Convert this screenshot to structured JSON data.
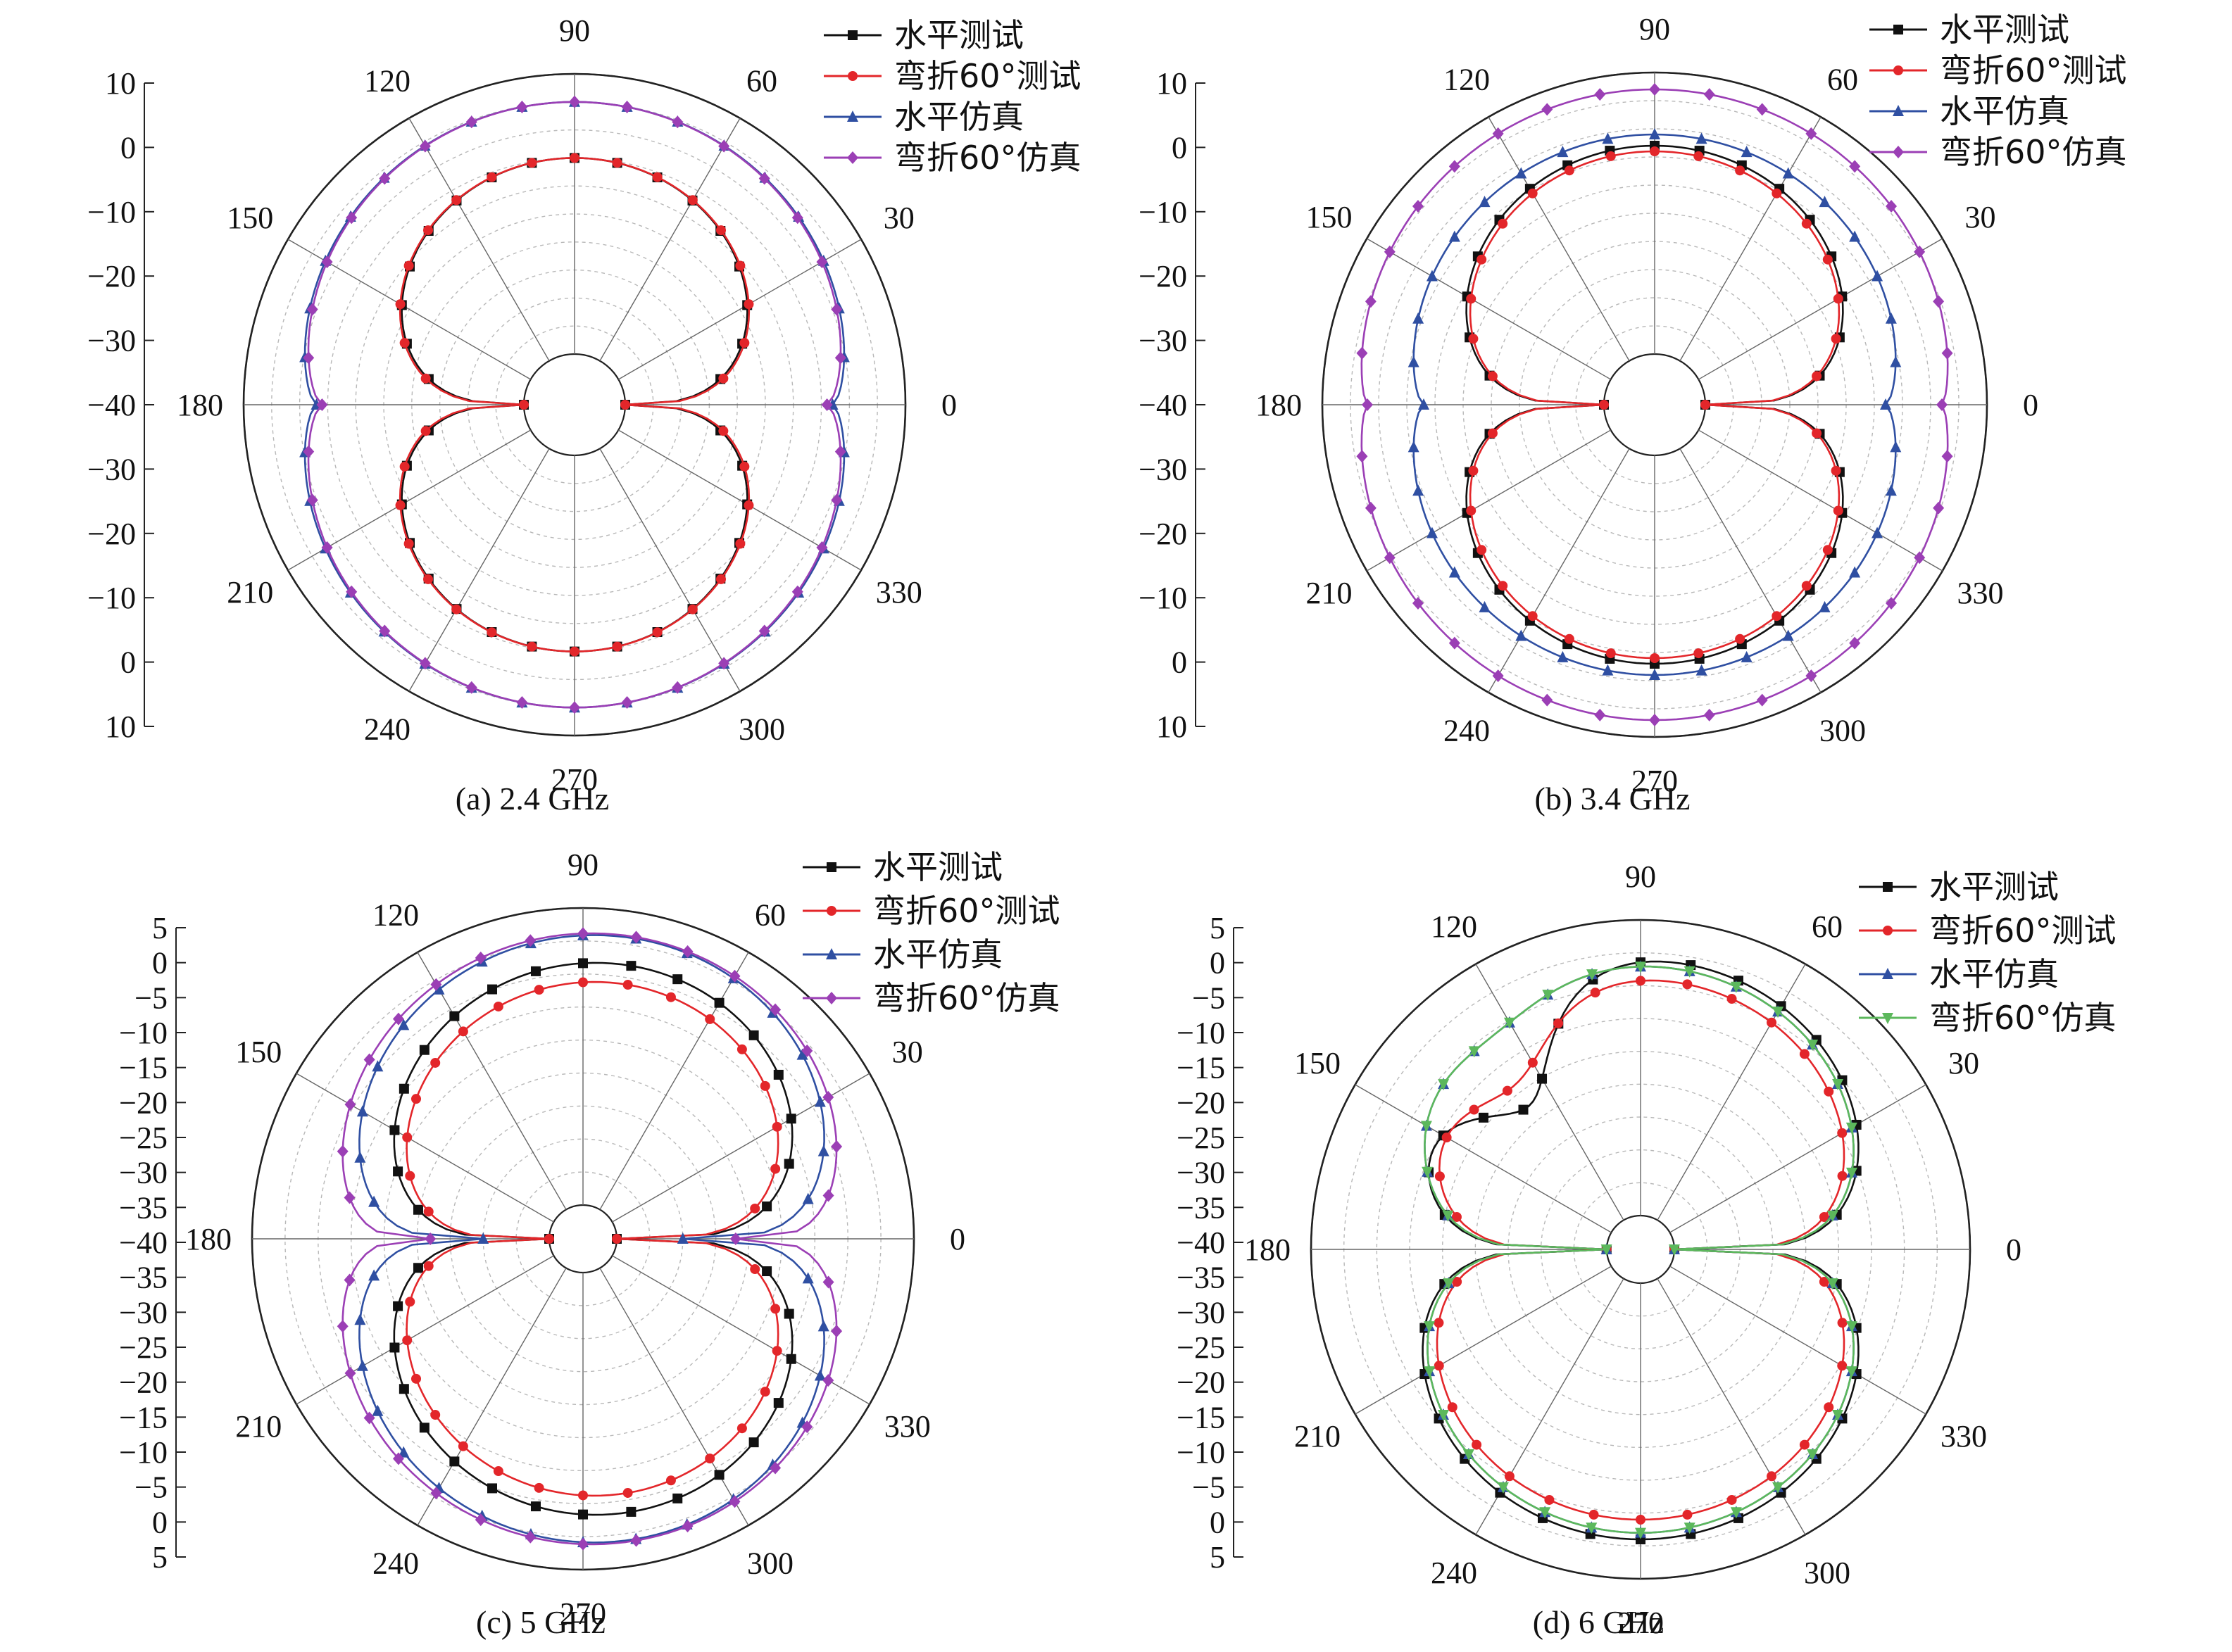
{
  "legend_labels": [
    "水平测试",
    "弯折60°测试",
    "水平仿真",
    "弯折60°仿真"
  ],
  "colors": {
    "black": "#111111",
    "red": "#e3262a",
    "blue": "#2f4fa2",
    "purple": "#9b3fb5",
    "green": "#5cb85c"
  },
  "chart_data": [
    {
      "type": "polar",
      "caption": "(a) 2.4 GHz",
      "angle_ticks": [
        "0",
        "30",
        "60",
        "90",
        "120",
        "150",
        "180",
        "210",
        "240",
        "270",
        "300",
        "330"
      ],
      "radial_tick_labels": [
        "10",
        "0",
        "−10",
        "−20",
        "−30",
        "−40",
        "−30",
        "−20",
        "−10",
        "0",
        "10"
      ],
      "rlim": [
        -40,
        10
      ],
      "series": [
        {
          "name": "水平测试",
          "color": "black",
          "marker": "square",
          "pattern": {
            "kind": "figure8",
            "peak": -5,
            "side_null": -40,
            "shape": 1.0
          }
        },
        {
          "name": "弯折60°测试",
          "color": "red",
          "marker": "circle",
          "pattern": {
            "kind": "figure8",
            "peak": -5,
            "side_null": -40,
            "shape": 0.95
          }
        },
        {
          "name": "水平仿真",
          "color": "blue",
          "marker": "triangle",
          "pattern": {
            "kind": "round",
            "peak": 5,
            "side_min": -3,
            "shape": 1.0
          }
        },
        {
          "name": "弯折60°仿真",
          "color": "purple",
          "marker": "diamond",
          "pattern": {
            "kind": "round",
            "peak": 5,
            "side_min": -4,
            "shape": 1.0
          }
        }
      ]
    },
    {
      "type": "polar",
      "caption": "(b) 3.4 GHz",
      "angle_ticks": [
        "0",
        "30",
        "60",
        "90",
        "120",
        "150",
        "180",
        "210",
        "240",
        "270",
        "300",
        "330"
      ],
      "radial_tick_labels": [
        "10",
        "0",
        "−10",
        "−20",
        "−30",
        "−40",
        "−30",
        "−20",
        "−10",
        "0",
        "10"
      ],
      "rlim": [
        -40,
        10
      ],
      "series": [
        {
          "name": "水平测试",
          "color": "black",
          "marker": "square",
          "pattern": {
            "kind": "figure8",
            "peak": -3,
            "side_null": -40,
            "shape": 0.8
          }
        },
        {
          "name": "弯折60°测试",
          "color": "red",
          "marker": "circle",
          "pattern": {
            "kind": "figure8",
            "peak": -4,
            "side_null": -40,
            "shape": 0.8
          }
        },
        {
          "name": "水平仿真",
          "color": "blue",
          "marker": "triangle",
          "pattern": {
            "kind": "round",
            "peak": -1,
            "side_min": -8,
            "shape": 1.0
          }
        },
        {
          "name": "弯折60°仿真",
          "color": "purple",
          "marker": "diamond",
          "pattern": {
            "kind": "round",
            "peak": 7,
            "side_min": 2,
            "shape": 1.0
          }
        }
      ]
    },
    {
      "type": "polar",
      "caption": "(c) 5 GHz",
      "angle_ticks": [
        "0",
        "30",
        "60",
        "90",
        "120",
        "150",
        "180",
        "210",
        "240",
        "270",
        "300",
        "330"
      ],
      "radial_tick_labels": [
        "5",
        "0",
        "−5",
        "−10",
        "−15",
        "−20",
        "−25",
        "−30",
        "−35",
        "−40",
        "−35",
        "−30",
        "−25",
        "−20",
        "−15",
        "−10",
        "−5",
        "0",
        "5"
      ],
      "rlim": [
        -40,
        5
      ],
      "series": [
        {
          "name": "水平测试",
          "color": "black",
          "marker": "square",
          "pattern": {
            "kind": "skew",
            "peak": -2,
            "side_null": -40,
            "right_gain": 0.0
          }
        },
        {
          "name": "弯折60°测试",
          "color": "red",
          "marker": "circle",
          "pattern": {
            "kind": "skew",
            "peak": -5,
            "side_null": -40,
            "right_gain": 0.0
          }
        },
        {
          "name": "水平仿真",
          "color": "blue",
          "marker": "triangle",
          "pattern": {
            "kind": "skew",
            "peak": 2,
            "side_null": -30,
            "right_gain": 0.0
          }
        },
        {
          "name": "弯折60°仿真",
          "color": "purple",
          "marker": "diamond",
          "pattern": {
            "kind": "skew",
            "peak": 2,
            "side_null": -22,
            "right_gain": 0.0
          }
        }
      ]
    },
    {
      "type": "polar",
      "caption": "(d) 6 GHz",
      "angle_ticks": [
        "0",
        "30",
        "60",
        "90",
        "120",
        "150",
        "180",
        "210",
        "240",
        "270",
        "300",
        "330"
      ],
      "radial_tick_labels": [
        "5",
        "0",
        "−5",
        "−10",
        "−15",
        "−20",
        "−25",
        "−30",
        "−35",
        "−40",
        "−35",
        "−30",
        "−25",
        "−20",
        "−15",
        "−10",
        "−5",
        "0",
        "5"
      ],
      "rlim": [
        -40,
        5
      ],
      "series": [
        {
          "name": "水平测试",
          "color": "black",
          "marker": "square",
          "pattern": {
            "kind": "clover",
            "peak": -1,
            "side_null": -40,
            "dip": -20
          }
        },
        {
          "name": "弯折60°测试",
          "color": "red",
          "marker": "circle",
          "pattern": {
            "kind": "clover",
            "peak": -4,
            "side_null": -40,
            "dip": -15
          }
        },
        {
          "name": "水平仿真",
          "color": "blue",
          "marker": "triangle",
          "pattern": {
            "kind": "clover",
            "peak": -2,
            "side_null": -40,
            "dip": -6
          }
        },
        {
          "name": "弯折60°仿真",
          "color": "green",
          "marker": "tri-down",
          "pattern": {
            "kind": "clover",
            "peak": -2,
            "side_null": -40,
            "dip": -6
          }
        }
      ]
    }
  ]
}
